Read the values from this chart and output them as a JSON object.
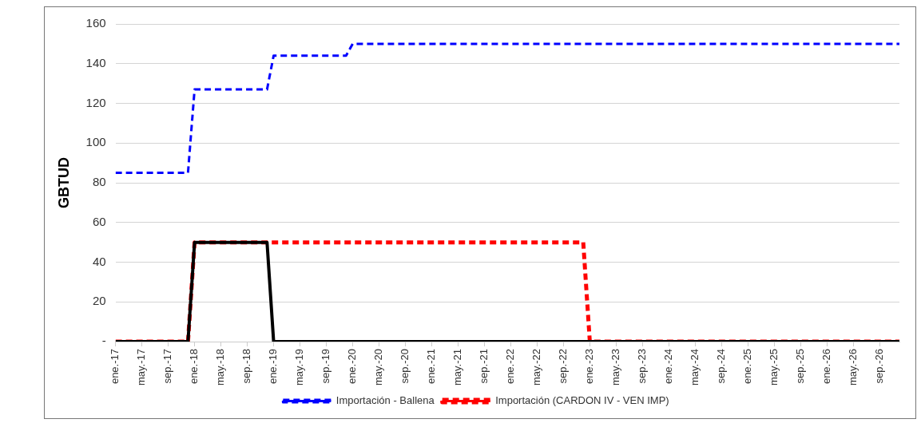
{
  "chart_data": {
    "type": "line",
    "ylabel": "GBTUD",
    "xlim": [
      "2017-01",
      "2026-12"
    ],
    "ylim": [
      0,
      160
    ],
    "yticks": [
      {
        "value": 0,
        "label": "-"
      },
      20,
      40,
      60,
      80,
      100,
      120,
      140,
      160
    ],
    "xticks": [
      {
        "value": "2017-01",
        "label": "ene.-17"
      },
      {
        "value": "2017-05",
        "label": "may.-17"
      },
      {
        "value": "2017-09",
        "label": "sep.-17"
      },
      {
        "value": "2018-01",
        "label": "ene.-18"
      },
      {
        "value": "2018-05",
        "label": "may.-18"
      },
      {
        "value": "2018-09",
        "label": "sep.-18"
      },
      {
        "value": "2019-01",
        "label": "ene.-19"
      },
      {
        "value": "2019-05",
        "label": "may.-19"
      },
      {
        "value": "2019-09",
        "label": "sep.-19"
      },
      {
        "value": "2020-01",
        "label": "ene.-20"
      },
      {
        "value": "2020-05",
        "label": "may.-20"
      },
      {
        "value": "2020-09",
        "label": "sep.-20"
      },
      {
        "value": "2021-01",
        "label": "ene.-21"
      },
      {
        "value": "2021-05",
        "label": "may.-21"
      },
      {
        "value": "2021-09",
        "label": "sep.-21"
      },
      {
        "value": "2022-01",
        "label": "ene.-22"
      },
      {
        "value": "2022-05",
        "label": "may.-22"
      },
      {
        "value": "2022-09",
        "label": "sep.-22"
      },
      {
        "value": "2023-01",
        "label": "ene.-23"
      },
      {
        "value": "2023-05",
        "label": "may.-23"
      },
      {
        "value": "2023-09",
        "label": "sep.-23"
      },
      {
        "value": "2024-01",
        "label": "ene.-24"
      },
      {
        "value": "2024-05",
        "label": "may.-24"
      },
      {
        "value": "2024-09",
        "label": "sep.-24"
      },
      {
        "value": "2025-01",
        "label": "ene.-25"
      },
      {
        "value": "2025-05",
        "label": "may.-25"
      },
      {
        "value": "2025-09",
        "label": "sep.-25"
      },
      {
        "value": "2026-01",
        "label": "ene.-26"
      },
      {
        "value": "2026-05",
        "label": "may.-26"
      },
      {
        "value": "2026-09",
        "label": "sep.-26"
      }
    ],
    "grid": "y",
    "legend": "bottom",
    "marker": "none",
    "series": [
      {
        "name": "Importación - Ballena",
        "color": "#0000ff",
        "line_style": "dashed",
        "x": [
          "2017-01",
          "2017-12",
          "2018-01",
          "2018-12",
          "2019-01",
          "2019-12",
          "2020-01",
          "2026-12"
        ],
        "values": [
          85,
          85,
          127,
          127,
          144,
          144,
          150,
          150
        ]
      },
      {
        "color": "#000000",
        "line_style": "solid",
        "x": [
          "2017-01",
          "2017-12",
          "2018-01",
          "2018-12",
          "2019-01",
          "2026-12"
        ],
        "values": [
          0,
          0,
          50,
          50,
          0,
          0
        ]
      },
      {
        "name": "Importación (CARDON IV - VEN IMP)",
        "color": "#ff0000",
        "line_style": "dashed",
        "x": [
          "2017-01",
          "2017-12",
          "2018-01",
          "2022-12",
          "2023-01",
          "2026-12"
        ],
        "values": [
          0,
          0,
          50,
          50,
          0,
          0
        ]
      }
    ]
  }
}
